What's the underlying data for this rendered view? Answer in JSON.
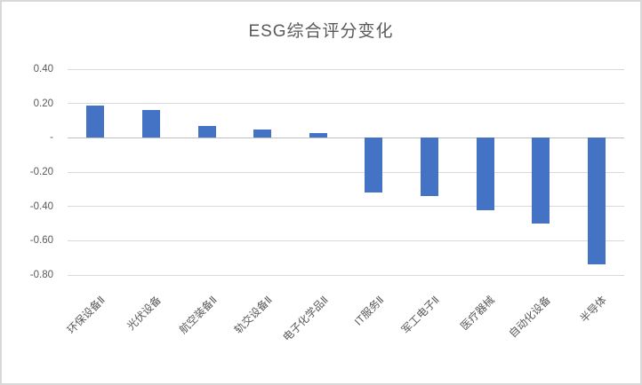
{
  "chart_data": {
    "type": "bar",
    "title": "ESG综合评分变化",
    "categories": [
      "环保设备Ⅱ",
      "光伏设备",
      "航空装备Ⅱ",
      "轨交设备Ⅱ",
      "电子化学品Ⅱ",
      "IT服务Ⅱ",
      "军工电子Ⅱ",
      "医疗器械",
      "自动化设备",
      "半导体"
    ],
    "values": [
      0.19,
      0.16,
      0.07,
      0.05,
      0.03,
      -0.32,
      -0.34,
      -0.42,
      -0.5,
      -0.74
    ],
    "xlabel": "",
    "ylabel": "",
    "ylim": [
      -0.8,
      0.4
    ],
    "y_ticks": [
      {
        "value": 0.4,
        "label": "0.40"
      },
      {
        "value": 0.2,
        "label": "0.20"
      },
      {
        "value": 0.0,
        "label": "-"
      },
      {
        "value": -0.2,
        "label": "-0.20"
      },
      {
        "value": -0.4,
        "label": "-0.40"
      },
      {
        "value": -0.6,
        "label": "-0.60"
      },
      {
        "value": -0.8,
        "label": "-0.80"
      }
    ],
    "grid": true,
    "legend": false,
    "colors": {
      "bar": "#4472c4",
      "gridline": "#d9d9d9",
      "zero_axis_line": "#bfbfbf",
      "text": "#595959",
      "chart_border": "#d9d9d9",
      "background": "#ffffff"
    }
  }
}
